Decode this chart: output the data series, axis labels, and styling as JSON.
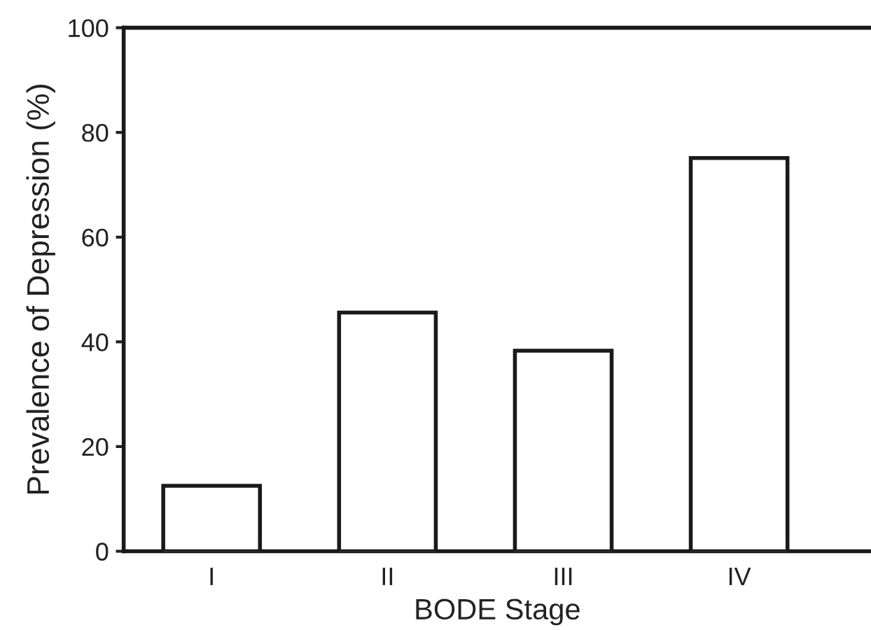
{
  "chart_data": {
    "type": "bar",
    "xlabel": "BODE Stage",
    "ylabel": "Prevalence of Depression (%)",
    "categories": [
      "I",
      "II",
      "III",
      "IV"
    ],
    "values": [
      12.5,
      45.6,
      38.3,
      75.1
    ],
    "color": "#ffffff",
    "ylim": [
      0,
      100
    ],
    "yticks": [
      0,
      20,
      40,
      60,
      80,
      100
    ],
    "grid": false,
    "legend": false
  }
}
